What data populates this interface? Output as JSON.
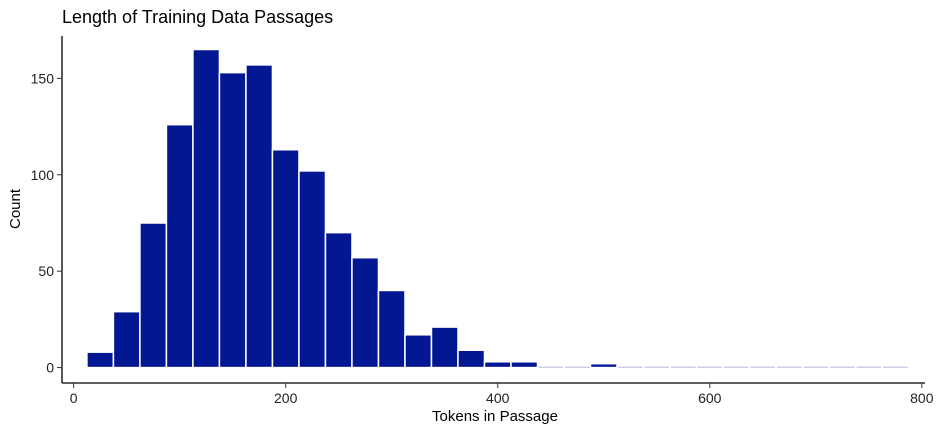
{
  "chart_data": {
    "type": "bar",
    "title": "Length of Training Data Passages",
    "xlabel": "Tokens in Passage",
    "ylabel": "Count",
    "xlim": [
      -11,
      803
    ],
    "ylim": [
      -8,
      172
    ],
    "xticks": [
      0,
      200,
      400,
      600,
      800
    ],
    "yticks": [
      0,
      50,
      100,
      150
    ],
    "bin_width": 25,
    "bins": [
      {
        "start": 12.5,
        "end": 37.5,
        "count": 8
      },
      {
        "start": 37.5,
        "end": 62.5,
        "count": 29
      },
      {
        "start": 62.5,
        "end": 87.5,
        "count": 75
      },
      {
        "start": 87.5,
        "end": 112.5,
        "count": 126
      },
      {
        "start": 112.5,
        "end": 137.5,
        "count": 165
      },
      {
        "start": 137.5,
        "end": 162.5,
        "count": 153
      },
      {
        "start": 162.5,
        "end": 187.5,
        "count": 157
      },
      {
        "start": 187.5,
        "end": 212.5,
        "count": 113
      },
      {
        "start": 212.5,
        "end": 237.5,
        "count": 102
      },
      {
        "start": 237.5,
        "end": 262.5,
        "count": 70
      },
      {
        "start": 262.5,
        "end": 287.5,
        "count": 57
      },
      {
        "start": 287.5,
        "end": 312.5,
        "count": 40
      },
      {
        "start": 312.5,
        "end": 337.5,
        "count": 17
      },
      {
        "start": 337.5,
        "end": 362.5,
        "count": 21
      },
      {
        "start": 362.5,
        "end": 387.5,
        "count": 9
      },
      {
        "start": 387.5,
        "end": 412.5,
        "count": 3
      },
      {
        "start": 412.5,
        "end": 437.5,
        "count": 3
      },
      {
        "start": 437.5,
        "end": 462.5,
        "count": 0
      },
      {
        "start": 462.5,
        "end": 487.5,
        "count": 0
      },
      {
        "start": 487.5,
        "end": 512.5,
        "count": 2
      },
      {
        "start": 512.5,
        "end": 537.5,
        "count": 0
      },
      {
        "start": 537.5,
        "end": 562.5,
        "count": 0
      },
      {
        "start": 562.5,
        "end": 587.5,
        "count": 0
      },
      {
        "start": 587.5,
        "end": 612.5,
        "count": 0
      },
      {
        "start": 612.5,
        "end": 637.5,
        "count": 0
      },
      {
        "start": 637.5,
        "end": 662.5,
        "count": 0
      },
      {
        "start": 662.5,
        "end": 687.5,
        "count": 0
      },
      {
        "start": 687.5,
        "end": 712.5,
        "count": 0
      },
      {
        "start": 712.5,
        "end": 737.5,
        "count": 0
      },
      {
        "start": 737.5,
        "end": 762.5,
        "count": 0
      },
      {
        "start": 762.5,
        "end": 787.5,
        "count": 0
      }
    ],
    "bar_color": "#041793",
    "bar_outline": "#ffffff",
    "empty_bin_color": "#c9cbe8",
    "grid": false,
    "legend": "none"
  }
}
